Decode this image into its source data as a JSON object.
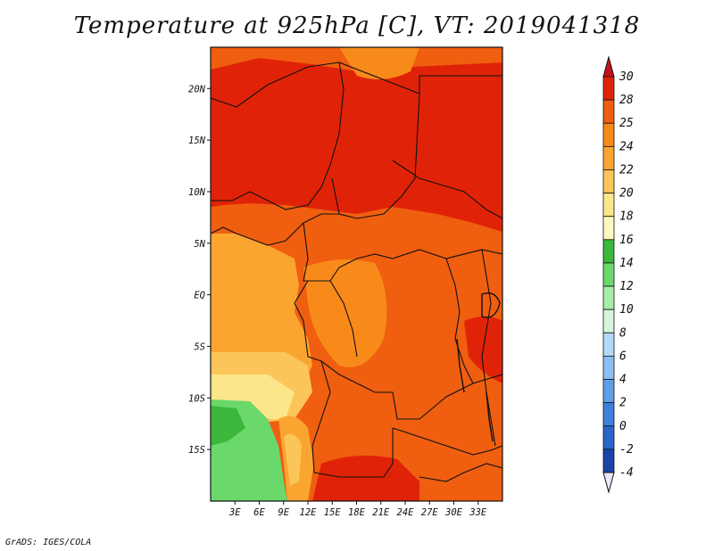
{
  "title": "Temperature at 925hPa [C], VT: 2019041318",
  "footer": "GrADS: IGES/COLA",
  "map": {
    "lon_range": [
      0,
      36
    ],
    "lat_range": [
      -20,
      24
    ],
    "lat_ticks": [
      {
        "value": 20,
        "label": "20N"
      },
      {
        "value": 15,
        "label": "15N"
      },
      {
        "value": 10,
        "label": "10N"
      },
      {
        "value": 5,
        "label": "5N"
      },
      {
        "value": 0,
        "label": "EQ"
      },
      {
        "value": -5,
        "label": "5S"
      },
      {
        "value": -10,
        "label": "10S"
      },
      {
        "value": -15,
        "label": "15S"
      }
    ],
    "lon_ticks": [
      {
        "value": 3,
        "label": "3E"
      },
      {
        "value": 6,
        "label": "6E"
      },
      {
        "value": 9,
        "label": "9E"
      },
      {
        "value": 12,
        "label": "12E"
      },
      {
        "value": 15,
        "label": "15E"
      },
      {
        "value": 18,
        "label": "18E"
      },
      {
        "value": 21,
        "label": "21E"
      },
      {
        "value": 24,
        "label": "24E"
      },
      {
        "value": 27,
        "label": "27E"
      },
      {
        "value": 30,
        "label": "30E"
      },
      {
        "value": 33,
        "label": "33E"
      }
    ]
  },
  "colorbar": {
    "levels": [
      "30",
      "28",
      "25",
      "24",
      "22",
      "20",
      "18",
      "16",
      "14",
      "12",
      "10",
      "8",
      "6",
      "4",
      "2",
      "0",
      "-2",
      "-4"
    ],
    "colors": [
      "#e02308",
      "#f05e10",
      "#f88a1a",
      "#faa530",
      "#fcc55a",
      "#fde68a",
      "#fdf8c0",
      "#3cb73c",
      "#6bd86b",
      "#a8ecac",
      "#d6f5dc",
      "#b4d8f8",
      "#8cbff2",
      "#5e9ee8",
      "#3f80dc",
      "#2a64c8",
      "#1a44a8",
      "#0a1a78"
    ],
    "top_triangle_color": "#c8101e",
    "bottom_triangle_color": "#e8e8f8"
  }
}
